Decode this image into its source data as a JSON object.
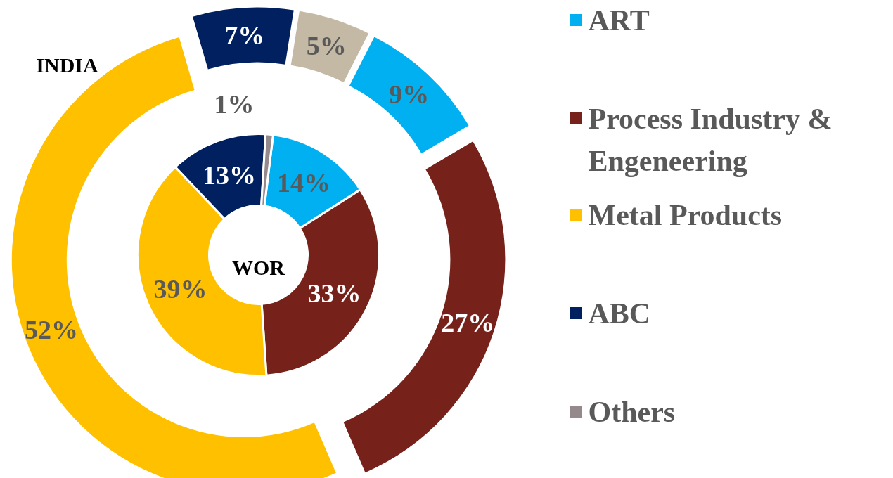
{
  "chart_data": {
    "type": "donut",
    "categories": [
      "ART",
      "Process Industry & Engeneering",
      "Metal Products",
      "ABC",
      "Others"
    ],
    "legend": "right",
    "series": [
      {
        "name": "INDIA",
        "values": [
          9,
          27,
          52,
          7,
          5
        ],
        "colors": [
          "#00b0f0",
          "#76211a",
          "#ffc000",
          "#002060",
          "#c4b9a5"
        ],
        "value_labels": [
          "9%",
          "27%",
          "52%",
          "7%",
          "5%"
        ]
      },
      {
        "name": "WOR",
        "values": [
          14,
          33,
          39,
          13,
          1
        ],
        "colors": [
          "#00b0f0",
          "#76211a",
          "#ffc000",
          "#002060",
          "#948a8c"
        ],
        "value_labels": [
          "14%",
          "33%",
          "39%",
          "13%",
          "1%"
        ]
      }
    ]
  }
}
